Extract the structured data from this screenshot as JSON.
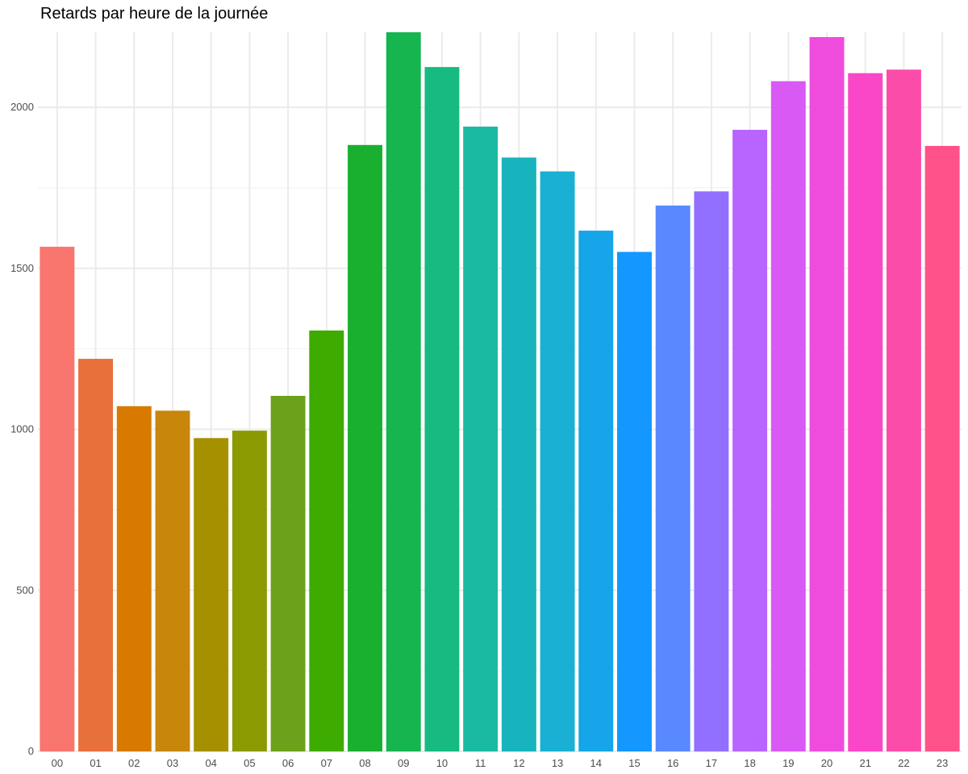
{
  "chart_data": {
    "type": "bar",
    "title": "Retards par heure de la journée",
    "xlabel": "",
    "ylabel": "",
    "categories": [
      "00",
      "01",
      "02",
      "03",
      "04",
      "05",
      "06",
      "07",
      "08",
      "09",
      "10",
      "11",
      "12",
      "13",
      "14",
      "15",
      "16",
      "17",
      "18",
      "19",
      "20",
      "21",
      "22",
      "23"
    ],
    "values": [
      1567,
      1219,
      1072,
      1058,
      973,
      996,
      1104,
      1307,
      1883,
      2233,
      2125,
      1940,
      1844,
      1801,
      1617,
      1551,
      1695,
      1739,
      1930,
      2081,
      2218,
      2106,
      2117,
      1880
    ],
    "colors": [
      "#F8766D",
      "#E8703B",
      "#D97A00",
      "#C8860A",
      "#A59000",
      "#8B9A00",
      "#6CA21B",
      "#3EAB00",
      "#1AB02F",
      "#17B550",
      "#17BA80",
      "#1ABAA2",
      "#18B4BE",
      "#19B0D4",
      "#15A5E8",
      "#1497FF",
      "#5A88FF",
      "#9270FF",
      "#B864FF",
      "#D959F4",
      "#EF4CDE",
      "#FA47C7",
      "#FC4CAA",
      "#FF528A"
    ],
    "ylim": [
      0,
      2233
    ],
    "yticks": [
      0,
      500,
      1000,
      1500,
      2000
    ],
    "ytick_labels": [
      "0",
      "500",
      "1000",
      "1500",
      "2000"
    ],
    "grid": true,
    "legend": "none"
  }
}
